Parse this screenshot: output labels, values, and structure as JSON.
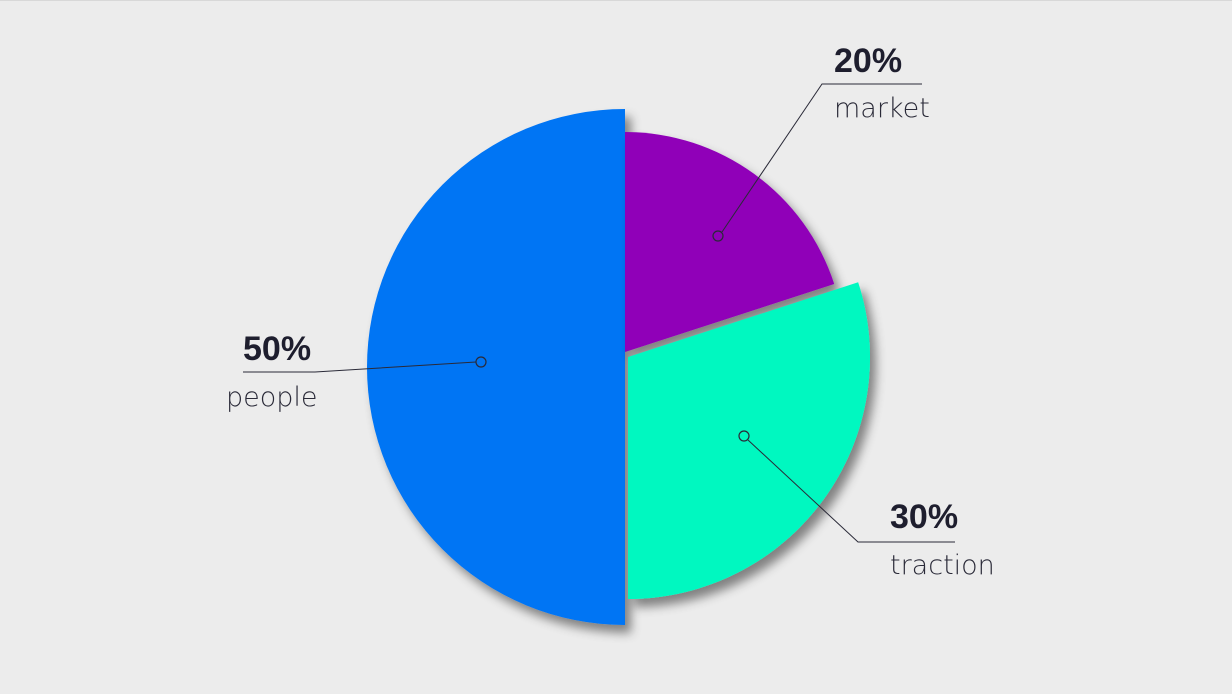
{
  "chart_data": {
    "type": "pie",
    "slices": [
      {
        "label": "people",
        "value": 50,
        "value_label": "50%",
        "color": "#0074f4"
      },
      {
        "label": "market",
        "value": 20,
        "value_label": "20%",
        "color": "#9000b8"
      },
      {
        "label": "traction",
        "value": 30,
        "value_label": "30%",
        "color": "#00f8c0"
      }
    ],
    "background": "#ececec"
  }
}
